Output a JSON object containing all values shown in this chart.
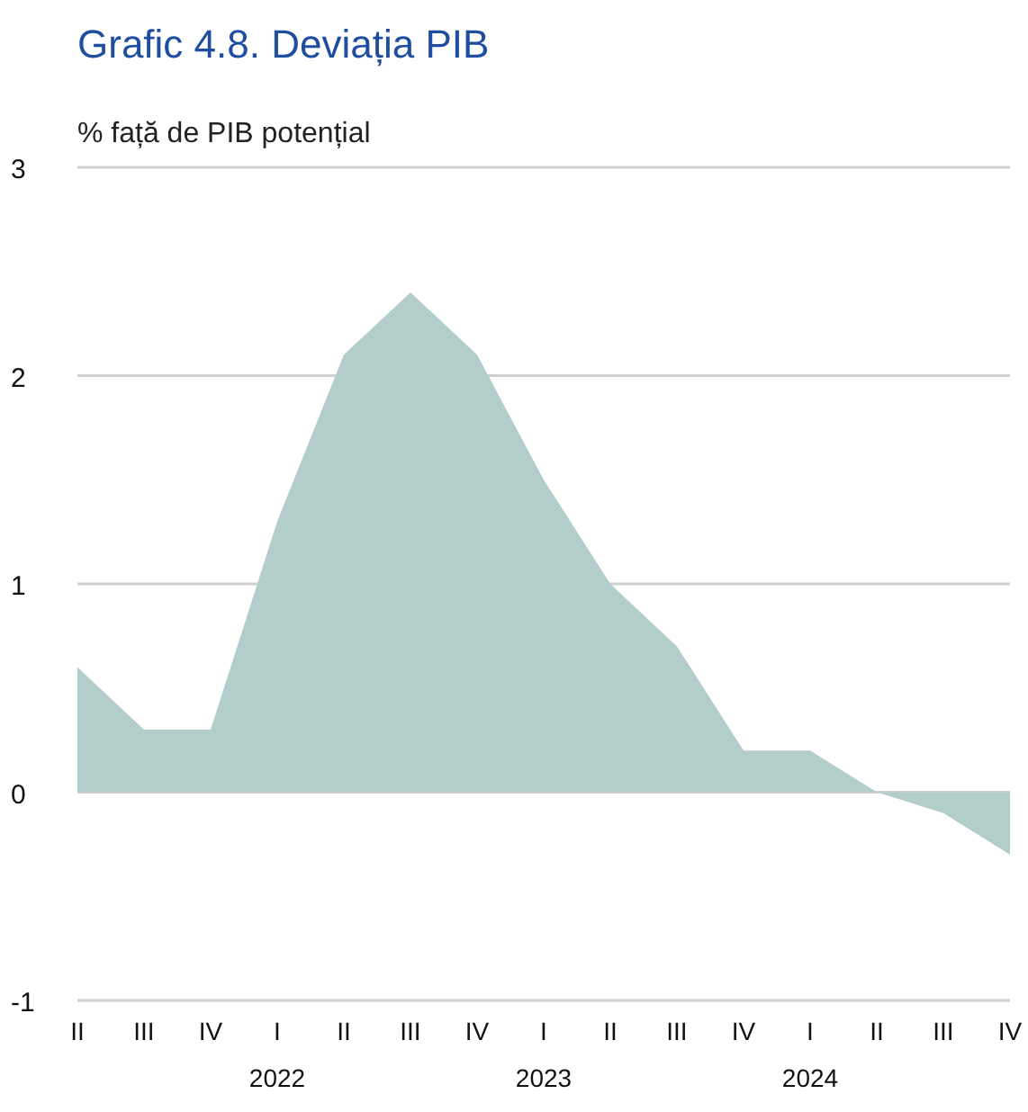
{
  "chart_data": {
    "type": "area",
    "title": "Grafic 4.8. Deviația PIB",
    "ylabel": "% față de PIB potențial",
    "categories": [
      "II",
      "III",
      "IV",
      "I\n2022",
      "II",
      "III",
      "IV",
      "I\n2023",
      "II",
      "III",
      "IV",
      "I\n2024",
      "II",
      "III",
      "IV"
    ],
    "values": [
      0.6,
      0.3,
      0.3,
      1.3,
      2.1,
      2.4,
      2.1,
      1.5,
      1.0,
      0.7,
      0.2,
      0.2,
      0.0,
      -0.1,
      -0.3
    ],
    "color": "#b3cdca",
    "ylim": [
      -1,
      3
    ],
    "yticks": [
      -1,
      0,
      1,
      2,
      3
    ],
    "grid": "y"
  }
}
